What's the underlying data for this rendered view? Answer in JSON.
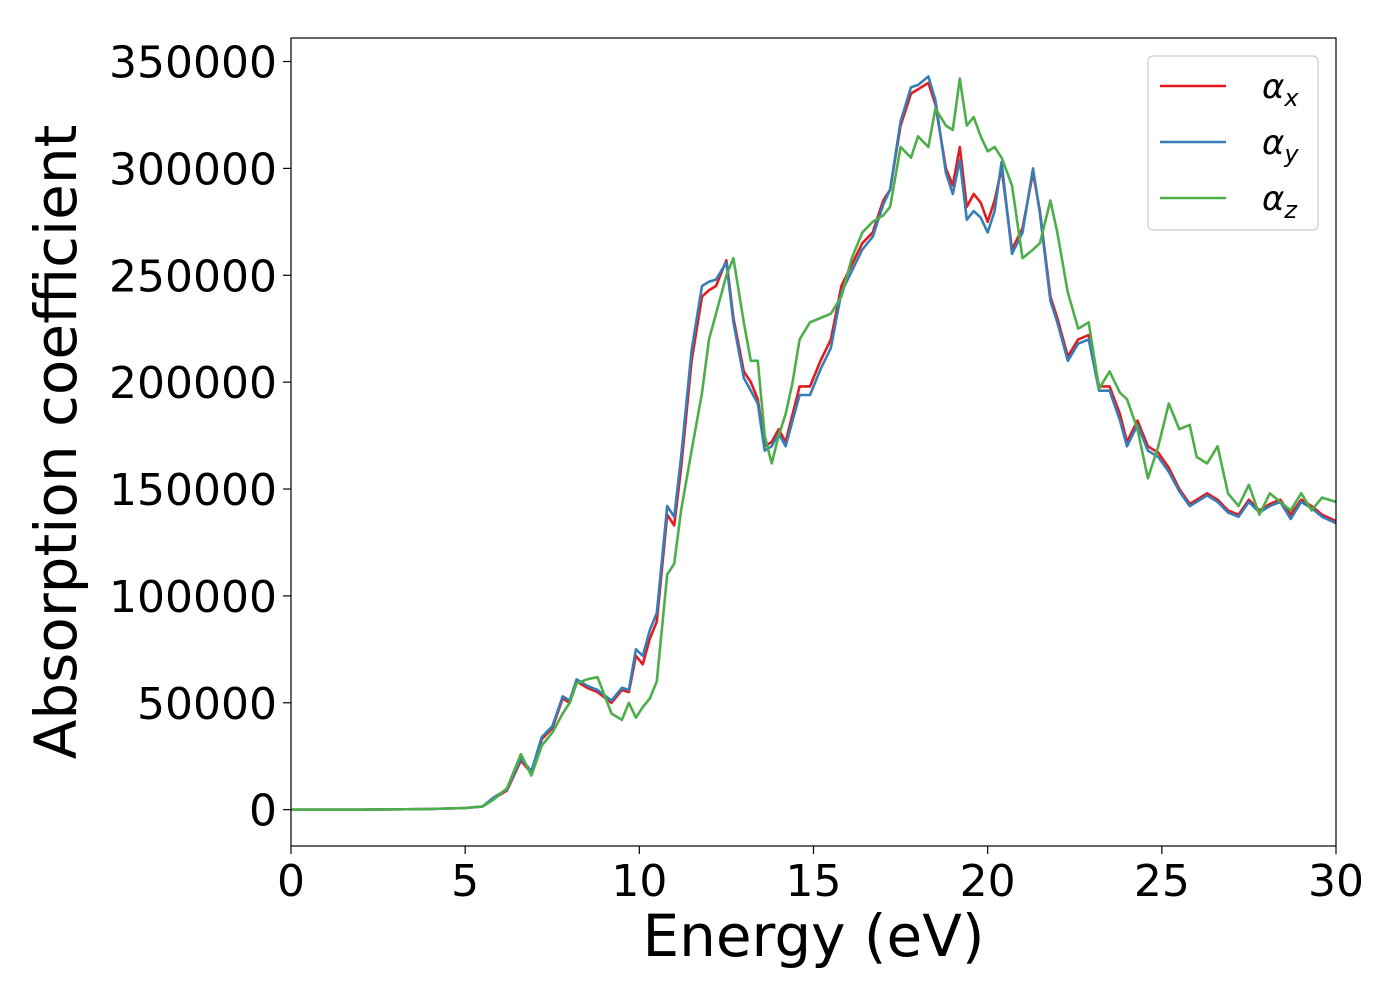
{
  "chart_data": {
    "type": "line",
    "title": "",
    "xlabel": "Energy (eV)",
    "ylabel": "Absorption coefficient",
    "xlim": [
      0,
      30
    ],
    "ylim": [
      -17000,
      361000
    ],
    "xticks": [
      0,
      5,
      10,
      15,
      20,
      25,
      30
    ],
    "xtick_labels": [
      "0",
      "5",
      "10",
      "15",
      "20",
      "25",
      "30"
    ],
    "yticks": [
      0,
      50000,
      100000,
      150000,
      200000,
      250000,
      300000,
      350000
    ],
    "ytick_labels": [
      "0",
      "50000",
      "100000",
      "150000",
      "200000",
      "250000",
      "300000",
      "350000"
    ],
    "grid": false,
    "legend_position": "top-right",
    "series": [
      {
        "name": "αx",
        "legend_base": "α",
        "legend_sub": "x",
        "color": "#e41a1c",
        "x": [
          0,
          2,
          4,
          5,
          5.5,
          5.8,
          6.2,
          6.6,
          6.9,
          7.2,
          7.5,
          7.8,
          8,
          8.2,
          8.5,
          8.8,
          9.2,
          9.5,
          9.7,
          9.9,
          10.1,
          10.3,
          10.5,
          10.8,
          11,
          11.2,
          11.5,
          11.8,
          12,
          12.2,
          12.5,
          12.7,
          13,
          13.2,
          13.4,
          13.6,
          13.8,
          14,
          14.2,
          14.4,
          14.6,
          14.9,
          15.2,
          15.5,
          15.8,
          16.1,
          16.4,
          16.7,
          17,
          17.2,
          17.5,
          17.8,
          18,
          18.3,
          18.5,
          18.8,
          19,
          19.2,
          19.4,
          19.6,
          19.8,
          20,
          20.2,
          20.4,
          20.7,
          21,
          21.3,
          21.5,
          21.8,
          22,
          22.3,
          22.6,
          22.9,
          23.2,
          23.5,
          23.8,
          24,
          24.3,
          24.6,
          24.9,
          25.2,
          25.5,
          25.8,
          26,
          26.3,
          26.6,
          26.9,
          27.2,
          27.5,
          27.8,
          28.1,
          28.4,
          28.7,
          29,
          29.3,
          29.6,
          30
        ],
        "values": [
          0,
          0,
          300,
          800,
          1500,
          5000,
          9000,
          23000,
          17000,
          33000,
          38000,
          52000,
          50000,
          60000,
          57000,
          55000,
          50000,
          56000,
          55000,
          72000,
          68000,
          80000,
          88000,
          138000,
          133000,
          160000,
          210000,
          240000,
          243000,
          245000,
          257000,
          230000,
          205000,
          200000,
          192000,
          170000,
          172000,
          178000,
          172000,
          185000,
          198000,
          198000,
          210000,
          220000,
          245000,
          255000,
          265000,
          270000,
          285000,
          290000,
          320000,
          335000,
          337000,
          340000,
          330000,
          300000,
          292000,
          310000,
          282000,
          288000,
          284000,
          275000,
          285000,
          300000,
          262000,
          272000,
          298000,
          280000,
          240000,
          230000,
          212000,
          220000,
          222000,
          198000,
          198000,
          185000,
          172000,
          182000,
          170000,
          167000,
          160000,
          150000,
          143000,
          145000,
          148000,
          145000,
          140000,
          138000,
          145000,
          140000,
          143000,
          145000,
          138000,
          145000,
          142000,
          138000,
          135000
        ]
      },
      {
        "name": "αy",
        "legend_base": "α",
        "legend_sub": "y",
        "color": "#377eb8",
        "x": [
          0,
          2,
          4,
          5,
          5.5,
          5.8,
          6.2,
          6.6,
          6.9,
          7.2,
          7.5,
          7.8,
          8,
          8.2,
          8.5,
          8.8,
          9.2,
          9.5,
          9.7,
          9.9,
          10.1,
          10.3,
          10.5,
          10.8,
          11,
          11.2,
          11.5,
          11.8,
          12,
          12.2,
          12.5,
          12.7,
          13,
          13.2,
          13.4,
          13.6,
          13.8,
          14,
          14.2,
          14.4,
          14.6,
          14.9,
          15.2,
          15.5,
          15.8,
          16.1,
          16.4,
          16.7,
          17,
          17.2,
          17.5,
          17.8,
          18,
          18.3,
          18.5,
          18.8,
          19,
          19.2,
          19.4,
          19.6,
          19.8,
          20,
          20.2,
          20.4,
          20.7,
          21,
          21.3,
          21.5,
          21.8,
          22,
          22.3,
          22.6,
          22.9,
          23.2,
          23.5,
          23.8,
          24,
          24.3,
          24.6,
          24.9,
          25.2,
          25.5,
          25.8,
          26,
          26.3,
          26.6,
          26.9,
          27.2,
          27.5,
          27.8,
          28.1,
          28.4,
          28.7,
          29,
          29.3,
          29.6,
          30
        ],
        "values": [
          0,
          0,
          300,
          800,
          1500,
          5500,
          9500,
          24000,
          18000,
          34000,
          39000,
          53000,
          51000,
          61000,
          58000,
          56000,
          51000,
          57000,
          56000,
          75000,
          72000,
          84000,
          92000,
          142000,
          137000,
          165000,
          215000,
          245000,
          247000,
          248000,
          256000,
          228000,
          202000,
          196000,
          190000,
          168000,
          170000,
          176000,
          170000,
          182000,
          194000,
          194000,
          206000,
          216000,
          242000,
          252000,
          262000,
          268000,
          283000,
          290000,
          322000,
          338000,
          339000,
          343000,
          332000,
          298000,
          288000,
          304000,
          276000,
          280000,
          277000,
          270000,
          280000,
          303000,
          260000,
          270000,
          300000,
          279000,
          238000,
          228000,
          210000,
          218000,
          220000,
          196000,
          196000,
          182000,
          170000,
          180000,
          168000,
          165000,
          158000,
          149000,
          142000,
          144000,
          147000,
          144000,
          139000,
          137000,
          144000,
          139000,
          142000,
          144000,
          136000,
          144000,
          141000,
          137000,
          134000
        ]
      },
      {
        "name": "αz",
        "legend_base": "α",
        "legend_sub": "z",
        "color": "#4daf4a",
        "x": [
          0,
          2,
          4,
          5,
          5.5,
          5.8,
          6.2,
          6.6,
          6.9,
          7.2,
          7.5,
          7.8,
          8,
          8.2,
          8.5,
          8.8,
          9.2,
          9.5,
          9.7,
          9.9,
          10.1,
          10.3,
          10.5,
          10.8,
          11,
          11.2,
          11.5,
          11.8,
          12,
          12.2,
          12.5,
          12.7,
          13,
          13.2,
          13.4,
          13.6,
          13.8,
          14,
          14.2,
          14.4,
          14.6,
          14.9,
          15.2,
          15.5,
          15.8,
          16.1,
          16.4,
          16.7,
          17,
          17.2,
          17.5,
          17.8,
          18,
          18.3,
          18.5,
          18.8,
          19,
          19.2,
          19.4,
          19.6,
          19.8,
          20,
          20.2,
          20.4,
          20.7,
          21,
          21.3,
          21.5,
          21.8,
          22,
          22.3,
          22.6,
          22.9,
          23.2,
          23.5,
          23.8,
          24,
          24.3,
          24.6,
          24.9,
          25.2,
          25.5,
          25.8,
          26,
          26.3,
          26.6,
          26.9,
          27.2,
          27.5,
          27.8,
          28.1,
          28.4,
          28.7,
          29,
          29.3,
          29.6,
          30
        ],
        "values": [
          0,
          0,
          300,
          800,
          1500,
          4500,
          10000,
          26000,
          16000,
          30000,
          36000,
          45000,
          50000,
          59000,
          61000,
          62000,
          45000,
          42000,
          50000,
          43000,
          48000,
          52000,
          60000,
          110000,
          115000,
          140000,
          168000,
          195000,
          220000,
          232000,
          250000,
          258000,
          228000,
          210000,
          210000,
          175000,
          162000,
          175000,
          185000,
          200000,
          220000,
          228000,
          230000,
          232000,
          240000,
          258000,
          270000,
          275000,
          278000,
          282000,
          310000,
          305000,
          315000,
          310000,
          328000,
          320000,
          318000,
          342000,
          320000,
          324000,
          315000,
          308000,
          310000,
          305000,
          292000,
          258000,
          262000,
          265000,
          285000,
          270000,
          242000,
          225000,
          228000,
          197000,
          205000,
          195000,
          192000,
          178000,
          155000,
          170000,
          190000,
          178000,
          180000,
          165000,
          162000,
          170000,
          148000,
          142000,
          152000,
          138000,
          148000,
          144000,
          140000,
          148000,
          140000,
          146000,
          144000
        ]
      }
    ]
  }
}
